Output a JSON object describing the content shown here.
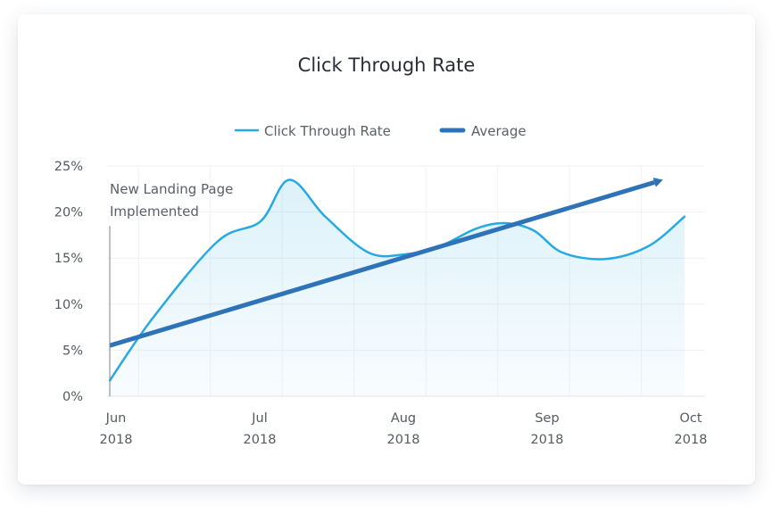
{
  "chart_data": {
    "type": "line",
    "title": "Click Through Rate",
    "xlabel": "",
    "ylabel": "",
    "ylim": [
      0,
      25
    ],
    "y_ticks": [
      "0%",
      "5%",
      "10%",
      "15%",
      "20%",
      "25%"
    ],
    "y_tick_values": [
      0,
      5,
      10,
      15,
      20,
      25
    ],
    "x_ticks": [
      {
        "month": "Jun",
        "year": "2018",
        "value": 0
      },
      {
        "month": "Jul",
        "year": "2018",
        "value": 1
      },
      {
        "month": "Aug",
        "year": "2018",
        "value": 2
      },
      {
        "month": "Sep",
        "year": "2018",
        "value": 3
      },
      {
        "month": "Oct",
        "year": "2018",
        "value": 4
      }
    ],
    "xlim": [
      0,
      4
    ],
    "grid": true,
    "legend_position": "top-center",
    "series": [
      {
        "name": "Click Through Rate",
        "color": "#27aae1",
        "fill": true,
        "x": [
          0,
          0.3,
          0.75,
          1.05,
          1.25,
          1.5,
          1.8,
          2.05,
          2.3,
          2.55,
          2.75,
          2.95,
          3.15,
          3.45,
          3.75,
          4.0
        ],
        "y": [
          1.7,
          8.5,
          16.8,
          19.0,
          23.5,
          19.5,
          15.6,
          15.4,
          16.3,
          18.2,
          18.8,
          18.0,
          15.6,
          14.9,
          16.3,
          19.5
        ]
      },
      {
        "name": "Average",
        "color": "#2e73b8",
        "x": [
          0,
          3.85
        ],
        "y": [
          5.5,
          23.5
        ],
        "arrow": true
      }
    ],
    "annotations": [
      {
        "lines": [
          "New Landing Page",
          "Implemented"
        ],
        "x": 0,
        "y_top": 18.5
      }
    ]
  }
}
